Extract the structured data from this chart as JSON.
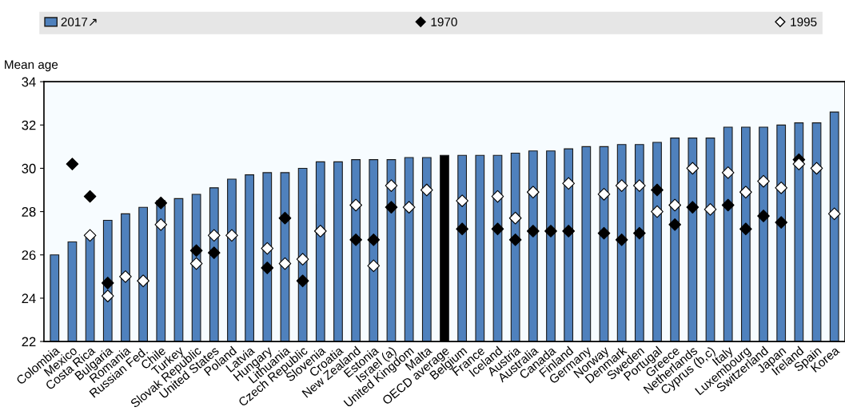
{
  "chart_data": {
    "type": "bar",
    "ylabel": "Mean age",
    "categories": [
      "Colombia",
      "Mexico",
      "Costa Rica",
      "Bulgaria",
      "Romania",
      "Russian Fed.",
      "Chile",
      "Turkey",
      "Slovak Republic",
      "United States",
      "Poland",
      "Latvia",
      "Hungary",
      "Lithuania",
      "Czech Republic",
      "Slovenia",
      "Croatia",
      "New Zealand",
      "Estonia",
      "Israel (a)",
      "United Kingdom",
      "Malta",
      "OECD average",
      "Belgium",
      "France",
      "Iceland",
      "Austria",
      "Australia",
      "Canada",
      "Finland",
      "Germany",
      "Norway",
      "Denmark",
      "Sweden",
      "Portugal",
      "Greece",
      "Netherlands",
      "Cyprus (b,c)",
      "Italy",
      "Luxembourg",
      "Switzerland",
      "Japan",
      "Ireland",
      "Spain",
      "Korea"
    ],
    "series": [
      {
        "name": "2017↗",
        "color": "#4f81bd",
        "colors": [
          "#4f81bd",
          "#4f81bd",
          "#4f81bd",
          "#4f81bd",
          "#4f81bd",
          "#4f81bd",
          "#4f81bd",
          "#4f81bd",
          "#4f81bd",
          "#4f81bd",
          "#4f81bd",
          "#4f81bd",
          "#4f81bd",
          "#4f81bd",
          "#4f81bd",
          "#4f81bd",
          "#4f81bd",
          "#4f81bd",
          "#4f81bd",
          "#4f81bd",
          "#4f81bd",
          "#4f81bd",
          "#000000",
          "#4f81bd",
          "#4f81bd",
          "#4f81bd",
          "#4f81bd",
          "#4f81bd",
          "#4f81bd",
          "#4f81bd",
          "#4f81bd",
          "#4f81bd",
          "#4f81bd",
          "#4f81bd",
          "#4f81bd",
          "#4f81bd",
          "#4f81bd",
          "#4f81bd",
          "#4f81bd",
          "#4f81bd",
          "#4f81bd",
          "#4f81bd",
          "#4f81bd",
          "#4f81bd",
          "#4f81bd"
        ],
        "values": [
          26.0,
          26.6,
          26.9,
          27.6,
          27.9,
          28.2,
          28.5,
          28.6,
          28.8,
          29.1,
          29.5,
          29.7,
          29.8,
          29.8,
          30.0,
          30.3,
          30.3,
          30.4,
          30.4,
          30.4,
          30.5,
          30.5,
          30.6,
          30.6,
          30.6,
          30.6,
          30.7,
          30.8,
          30.8,
          30.9,
          31.0,
          31.0,
          31.1,
          31.1,
          31.2,
          31.4,
          31.4,
          31.4,
          31.9,
          31.9,
          31.9,
          32.0,
          32.1,
          32.1,
          32.6
        ]
      },
      {
        "name": "1970",
        "type": "scatter",
        "color": "#000000",
        "values": [
          null,
          30.2,
          28.7,
          24.7,
          null,
          null,
          28.4,
          null,
          26.2,
          26.1,
          null,
          null,
          25.4,
          27.7,
          24.8,
          null,
          null,
          26.7,
          26.7,
          28.2,
          null,
          null,
          null,
          27.2,
          null,
          27.2,
          26.7,
          27.1,
          27.1,
          27.1,
          null,
          27.0,
          26.7,
          27.0,
          29.0,
          27.4,
          28.2,
          null,
          28.3,
          27.2,
          27.8,
          27.5,
          30.4,
          null,
          null
        ]
      },
      {
        "name": "1995",
        "type": "scatter",
        "color": "#ffffff",
        "values": [
          null,
          null,
          26.9,
          24.1,
          25.0,
          24.8,
          27.4,
          null,
          25.6,
          26.9,
          26.9,
          null,
          26.3,
          25.6,
          25.8,
          27.1,
          null,
          28.3,
          25.5,
          29.2,
          28.2,
          29.0,
          null,
          28.5,
          null,
          28.7,
          27.7,
          28.9,
          null,
          29.3,
          null,
          28.8,
          29.2,
          29.2,
          28.0,
          28.3,
          30.0,
          28.1,
          29.8,
          28.9,
          29.4,
          29.1,
          30.2,
          30.0,
          27.9
        ]
      }
    ],
    "ylim": [
      22,
      34
    ],
    "yticks": [
      22,
      24,
      26,
      28,
      30,
      32,
      34
    ],
    "marker": "diamond",
    "legend": "top",
    "grid": false
  }
}
